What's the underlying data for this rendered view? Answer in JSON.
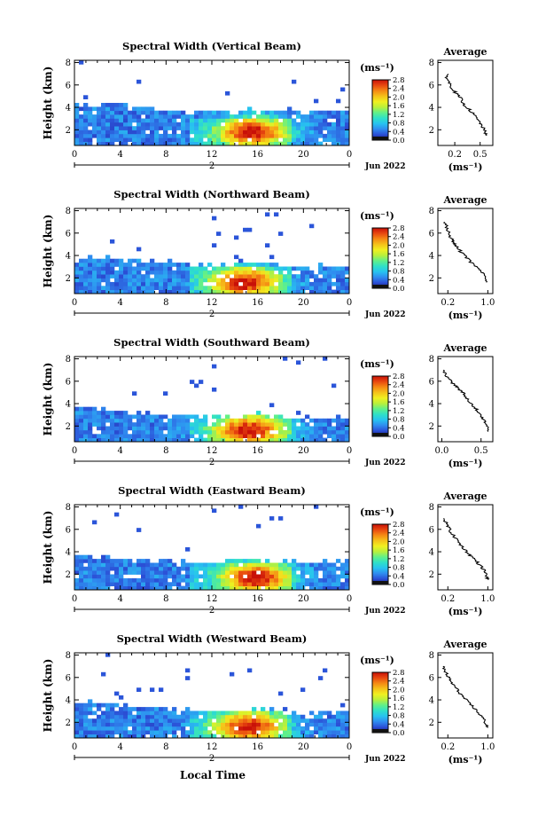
{
  "figure": {
    "shared_x_label": "Local Time",
    "date_label": "Jun 2022",
    "date_marker": "2",
    "colorbar": {
      "unit": "(ms⁻¹)",
      "ticks_a": [
        "0.0",
        "0.4",
        "0.8",
        "1.2",
        "1.6",
        "2.0",
        "2.4",
        "2.8"
      ],
      "ticks_b": [
        "0.0",
        "0.4",
        "0.8",
        "1.2",
        "1.6",
        "2.0",
        "2.4",
        "2.8"
      ],
      "stops": [
        "#1a1a80",
        "#2b4fd6",
        "#2f8cf0",
        "#27c3f0",
        "#2fe0c8",
        "#60f08a",
        "#b8f03c",
        "#f0f020",
        "#f5c21a",
        "#f58a14",
        "#e84810",
        "#c81008"
      ]
    },
    "profile_title": "Average",
    "profile_xlabel": "(ms⁻¹)",
    "accent": "#000000"
  },
  "chart_data": [
    {
      "type": "heatmap",
      "title": "Spectral Width (Vertical Beam)",
      "ylabel": "Height (km)",
      "xlabel": "Local Time",
      "x_ticks": [
        "0",
        "4",
        "8",
        "12",
        "16",
        "20",
        "0"
      ],
      "y_ticks": [
        "2",
        "4",
        "6",
        "8"
      ],
      "xlim": [
        0,
        24
      ],
      "ylim": [
        0.6,
        8.2
      ],
      "colorbar_range": [
        0.0,
        2.8
      ],
      "top_height_profile": [
        [
          0,
          4.3
        ],
        [
          3,
          4.3
        ],
        [
          6,
          4.0
        ],
        [
          9,
          3.7
        ],
        [
          12,
          3.6
        ],
        [
          14,
          3.8
        ],
        [
          16,
          3.8
        ],
        [
          18,
          3.8
        ],
        [
          20,
          3.7
        ],
        [
          22,
          3.7
        ],
        [
          24,
          3.7
        ]
      ],
      "peak": {
        "x": 15.5,
        "y": 1.8,
        "value": 2.8
      },
      "profile": {
        "title": "Average",
        "xticks": [
          "0.2",
          "0.5"
        ],
        "xlim": [
          0.0,
          0.65
        ],
        "y_ticks": [
          "2",
          "4",
          "6",
          "8"
        ],
        "ylim": [
          0.6,
          8.2
        ],
        "points": [
          [
            0.1,
            7.0
          ],
          [
            0.11,
            6.6
          ],
          [
            0.14,
            6.1
          ],
          [
            0.18,
            5.6
          ],
          [
            0.22,
            5.2
          ],
          [
            0.27,
            4.8
          ],
          [
            0.3,
            4.3
          ],
          [
            0.36,
            3.9
          ],
          [
            0.42,
            3.4
          ],
          [
            0.47,
            2.9
          ],
          [
            0.52,
            2.4
          ],
          [
            0.55,
            1.9
          ],
          [
            0.58,
            1.5
          ]
        ]
      }
    },
    {
      "type": "heatmap",
      "title": "Spectral Width (Northward Beam)",
      "ylabel": "Height (km)",
      "xlabel": "Local Time",
      "x_ticks": [
        "0",
        "4",
        "8",
        "12",
        "16",
        "20",
        "0"
      ],
      "y_ticks": [
        "2",
        "4",
        "6",
        "8"
      ],
      "xlim": [
        0,
        24
      ],
      "ylim": [
        0.6,
        8.2
      ],
      "colorbar_range": [
        0.0,
        2.8
      ],
      "top_height_profile": [
        [
          0,
          4.0
        ],
        [
          3,
          3.8
        ],
        [
          6,
          3.5
        ],
        [
          9,
          3.4
        ],
        [
          12,
          3.2
        ],
        [
          14,
          3.3
        ],
        [
          16,
          3.4
        ],
        [
          18,
          3.2
        ],
        [
          20,
          3.0
        ],
        [
          22,
          3.1
        ],
        [
          24,
          3.1
        ]
      ],
      "peak": {
        "x": 14.8,
        "y": 1.6,
        "value": 2.8
      },
      "profile": {
        "title": "Average",
        "xticks": [
          "0.2",
          "1.0"
        ],
        "xlim": [
          0.0,
          1.1
        ],
        "y_ticks": [
          "2",
          "4",
          "6",
          "8"
        ],
        "ylim": [
          0.6,
          8.2
        ],
        "points": [
          [
            0.15,
            7.0
          ],
          [
            0.18,
            6.5
          ],
          [
            0.22,
            6.0
          ],
          [
            0.27,
            5.5
          ],
          [
            0.33,
            5.1
          ],
          [
            0.4,
            4.7
          ],
          [
            0.46,
            4.3
          ],
          [
            0.58,
            3.8
          ],
          [
            0.66,
            3.4
          ],
          [
            0.76,
            3.0
          ],
          [
            0.88,
            2.5
          ],
          [
            0.94,
            2.1
          ],
          [
            0.97,
            1.6
          ]
        ]
      }
    },
    {
      "type": "heatmap",
      "title": "Spectral Width (Southward Beam)",
      "ylabel": "Height (km)",
      "xlabel": "Local Time",
      "x_ticks": [
        "0",
        "4",
        "8",
        "12",
        "16",
        "20",
        "0"
      ],
      "y_ticks": [
        "2",
        "4",
        "6",
        "8"
      ],
      "xlim": [
        0,
        24
      ],
      "ylim": [
        0.6,
        8.2
      ],
      "colorbar_range": [
        0.0,
        2.8
      ],
      "top_height_profile": [
        [
          0,
          3.6
        ],
        [
          3,
          3.4
        ],
        [
          6,
          3.2
        ],
        [
          9,
          3.0
        ],
        [
          12,
          2.9
        ],
        [
          14,
          2.8
        ],
        [
          16,
          3.0
        ],
        [
          18,
          2.9
        ],
        [
          20,
          2.6
        ],
        [
          22,
          2.7
        ],
        [
          24,
          2.7
        ]
      ],
      "peak": {
        "x": 15.2,
        "y": 1.6,
        "value": 2.8
      },
      "profile": {
        "title": "Average",
        "xticks": [
          "0.0",
          "0.5"
        ],
        "xlim": [
          -0.05,
          0.65
        ],
        "y_ticks": [
          "2",
          "4",
          "6",
          "8"
        ],
        "ylim": [
          0.6,
          8.2
        ],
        "points": [
          [
            0.02,
            7.0
          ],
          [
            0.05,
            6.6
          ],
          [
            0.1,
            6.1
          ],
          [
            0.16,
            5.7
          ],
          [
            0.22,
            5.3
          ],
          [
            0.28,
            4.9
          ],
          [
            0.32,
            4.4
          ],
          [
            0.38,
            4.0
          ],
          [
            0.44,
            3.5
          ],
          [
            0.5,
            3.0
          ],
          [
            0.54,
            2.5
          ],
          [
            0.57,
            2.0
          ],
          [
            0.59,
            1.5
          ]
        ]
      }
    },
    {
      "type": "heatmap",
      "title": "Spectral Width (Eastward Beam)",
      "ylabel": "Height (km)",
      "xlabel": "Local Time",
      "x_ticks": [
        "0",
        "4",
        "8",
        "12",
        "16",
        "20",
        "0"
      ],
      "y_ticks": [
        "2",
        "4",
        "6",
        "8"
      ],
      "xlim": [
        0,
        24
      ],
      "ylim": [
        0.6,
        8.2
      ],
      "colorbar_range": [
        0.0,
        2.8
      ],
      "top_height_profile": [
        [
          0,
          3.7
        ],
        [
          3,
          3.5
        ],
        [
          6,
          3.3
        ],
        [
          9,
          3.1
        ],
        [
          12,
          3.0
        ],
        [
          14,
          3.2
        ],
        [
          16,
          3.3
        ],
        [
          18,
          3.2
        ],
        [
          20,
          3.0
        ],
        [
          22,
          3.1
        ],
        [
          24,
          3.1
        ]
      ],
      "peak": {
        "x": 15.8,
        "y": 1.7,
        "value": 2.8
      },
      "profile": {
        "title": "Average",
        "xticks": [
          "0.2",
          "1.0"
        ],
        "xlim": [
          0.0,
          1.1
        ],
        "y_ticks": [
          "2",
          "4",
          "6",
          "8"
        ],
        "ylim": [
          0.6,
          8.2
        ],
        "points": [
          [
            0.12,
            7.0
          ],
          [
            0.16,
            6.6
          ],
          [
            0.22,
            6.1
          ],
          [
            0.28,
            5.6
          ],
          [
            0.36,
            5.2
          ],
          [
            0.44,
            4.7
          ],
          [
            0.52,
            4.3
          ],
          [
            0.62,
            3.8
          ],
          [
            0.72,
            3.4
          ],
          [
            0.82,
            2.9
          ],
          [
            0.92,
            2.4
          ],
          [
            0.97,
            1.9
          ],
          [
            1.0,
            1.5
          ]
        ]
      }
    },
    {
      "type": "heatmap",
      "title": "Spectral Width (Westward Beam)",
      "ylabel": "Height (km)",
      "xlabel": "Local Time",
      "x_ticks": [
        "0",
        "4",
        "8",
        "12",
        "16",
        "20",
        "0"
      ],
      "y_ticks": [
        "2",
        "4",
        "6",
        "8"
      ],
      "xlim": [
        0,
        24
      ],
      "ylim": [
        0.6,
        8.2
      ],
      "colorbar_range": [
        0.0,
        2.8
      ],
      "top_height_profile": [
        [
          0,
          3.9
        ],
        [
          3,
          3.6
        ],
        [
          6,
          3.4
        ],
        [
          9,
          3.2
        ],
        [
          12,
          3.0
        ],
        [
          14,
          3.1
        ],
        [
          16,
          3.2
        ],
        [
          18,
          3.0
        ],
        [
          20,
          2.8
        ],
        [
          22,
          2.9
        ],
        [
          24,
          2.9
        ]
      ],
      "peak": {
        "x": 15.2,
        "y": 1.6,
        "value": 2.8
      },
      "profile": {
        "title": "Average",
        "xticks": [
          "0.2",
          "1.0"
        ],
        "xlim": [
          0.0,
          1.1
        ],
        "y_ticks": [
          "2",
          "4",
          "6",
          "8"
        ],
        "ylim": [
          0.6,
          8.2
        ],
        "points": [
          [
            0.1,
            7.0
          ],
          [
            0.14,
            6.6
          ],
          [
            0.2,
            6.1
          ],
          [
            0.26,
            5.6
          ],
          [
            0.34,
            5.2
          ],
          [
            0.42,
            4.7
          ],
          [
            0.5,
            4.3
          ],
          [
            0.6,
            3.8
          ],
          [
            0.7,
            3.4
          ],
          [
            0.8,
            2.9
          ],
          [
            0.9,
            2.4
          ],
          [
            0.96,
            1.9
          ],
          [
            1.0,
            1.5
          ]
        ]
      }
    }
  ]
}
